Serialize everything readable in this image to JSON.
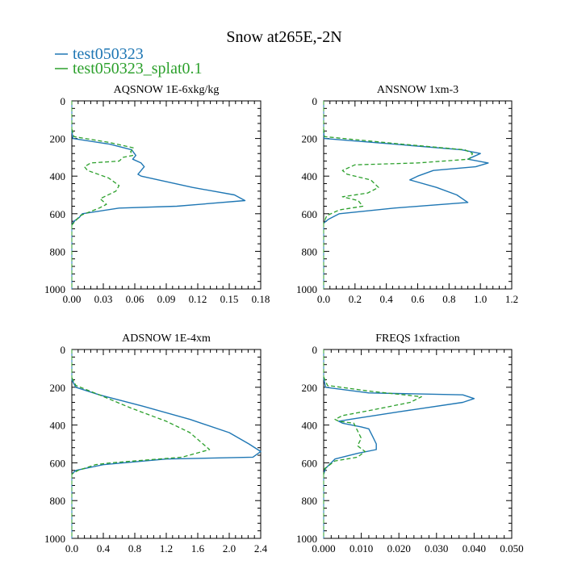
{
  "figure": {
    "title": "Snow at265E,-2N",
    "legend": [
      {
        "label": "test050323",
        "color": "#1f77b4",
        "dash": "solid"
      },
      {
        "label": "test050323_splat0.1",
        "color": "#2ca02c",
        "dash": "dashed"
      }
    ]
  },
  "chart_data": [
    {
      "type": "line",
      "title": "AQSNOW  1E-6xkg/kg",
      "xlim": [
        0,
        0.18
      ],
      "ylim": [
        1000,
        0
      ],
      "xticks": [
        0,
        0.03,
        0.06,
        0.09,
        0.12,
        0.15,
        0.18
      ],
      "xtick_labels": [
        "0.00",
        "0.03",
        "0.06",
        "0.09",
        "0.12",
        "0.15",
        "0.18"
      ],
      "yticks": [
        0,
        200,
        400,
        600,
        800,
        1000
      ],
      "ytick_labels": [
        "0",
        "200",
        "400",
        "600",
        "800",
        "1000"
      ],
      "series": [
        {
          "name": "test050323",
          "x": [
            0,
            0.001,
            0.036,
            0.057,
            0.061,
            0.058,
            0.066,
            0.069,
            0.063,
            0.066,
            0.115,
            0.155,
            0.165,
            0.1,
            0.045,
            0.01,
            0.007,
            0.002,
            0
          ],
          "y": [
            160,
            200,
            230,
            260,
            290,
            310,
            330,
            350,
            390,
            400,
            460,
            500,
            530,
            560,
            570,
            600,
            620,
            640,
            660
          ]
        },
        {
          "name": "test050323_splat0.1",
          "x": [
            0,
            0.002,
            0.035,
            0.059,
            0.056,
            0.058,
            0.049,
            0.045,
            0.018,
            0.012,
            0.015,
            0.035,
            0.045,
            0.042,
            0.027,
            0.033,
            0.026,
            0.008,
            0
          ],
          "y": [
            150,
            190,
            220,
            250,
            270,
            290,
            300,
            320,
            330,
            350,
            370,
            410,
            450,
            480,
            520,
            550,
            570,
            610,
            660
          ]
        }
      ]
    },
    {
      "type": "line",
      "title": "ANSNOW  1xm-3",
      "xlim": [
        0,
        1.2
      ],
      "ylim": [
        1000,
        0
      ],
      "xticks": [
        0,
        0.2,
        0.4,
        0.6,
        0.8,
        1.0,
        1.2
      ],
      "xtick_labels": [
        "0.0",
        "0.2",
        "0.4",
        "0.6",
        "0.8",
        "1.0",
        "1.2"
      ],
      "yticks": [
        0,
        200,
        400,
        600,
        800,
        1000
      ],
      "ytick_labels": [
        "0",
        "200",
        "400",
        "600",
        "800",
        "1000"
      ],
      "series": [
        {
          "name": "test050323",
          "x": [
            0,
            0.003,
            0.45,
            0.88,
            1.0,
            0.92,
            1.05,
            0.97,
            0.7,
            0.6,
            0.55,
            0.72,
            0.85,
            0.92,
            0.45,
            0.1,
            0.03,
            0
          ],
          "y": [
            160,
            200,
            230,
            260,
            280,
            310,
            330,
            350,
            370,
            400,
            420,
            460,
            500,
            540,
            570,
            600,
            630,
            650
          ]
        },
        {
          "name": "test050323_splat0.1",
          "x": [
            0,
            0.005,
            0.5,
            0.9,
            0.95,
            0.93,
            0.6,
            0.2,
            0.12,
            0.15,
            0.3,
            0.35,
            0.28,
            0.12,
            0.22,
            0.25,
            0.1,
            0.02,
            0
          ],
          "y": [
            150,
            190,
            230,
            260,
            280,
            310,
            330,
            340,
            370,
            390,
            420,
            460,
            490,
            510,
            530,
            560,
            580,
            610,
            650
          ]
        }
      ]
    },
    {
      "type": "line",
      "title": "ADSNOW  1E-4xm",
      "xlim": [
        0,
        2.4
      ],
      "ylim": [
        1000,
        0
      ],
      "xticks": [
        0,
        0.4,
        0.8,
        1.2,
        1.6,
        2.0,
        2.4
      ],
      "xtick_labels": [
        "0.0",
        "0.4",
        "0.8",
        "1.2",
        "1.6",
        "2.0",
        "2.4"
      ],
      "yticks": [
        0,
        200,
        400,
        600,
        800,
        1000
      ],
      "ytick_labels": [
        "0",
        "200",
        "400",
        "600",
        "800",
        "1000"
      ],
      "series": [
        {
          "name": "test050323",
          "x": [
            0,
            0.05,
            0.35,
            0.9,
            1.5,
            2.0,
            2.25,
            2.4,
            2.3,
            1.2,
            0.4,
            0.05,
            0
          ],
          "y": [
            160,
            200,
            240,
            300,
            370,
            440,
            500,
            540,
            570,
            580,
            610,
            640,
            660
          ]
        },
        {
          "name": "test050323_splat0.1",
          "x": [
            0,
            0.05,
            0.35,
            0.75,
            1.2,
            1.5,
            1.75,
            1.4,
            0.5,
            0.3,
            0.08,
            0
          ],
          "y": [
            150,
            190,
            240,
            310,
            380,
            440,
            530,
            570,
            600,
            610,
            640,
            660
          ]
        }
      ]
    },
    {
      "type": "line",
      "title": "FREQS  1xfraction",
      "xlim": [
        0,
        0.05
      ],
      "ylim": [
        1000,
        0
      ],
      "xticks": [
        0,
        0.01,
        0.02,
        0.03,
        0.04,
        0.05
      ],
      "xtick_labels": [
        "0.000",
        "0.010",
        "0.020",
        "0.030",
        "0.040",
        "0.050"
      ],
      "yticks": [
        0,
        200,
        400,
        600,
        800,
        1000
      ],
      "ytick_labels": [
        "0",
        "200",
        "400",
        "600",
        "800",
        "1000"
      ],
      "series": [
        {
          "name": "test050323",
          "x": [
            0,
            0.0005,
            0.012,
            0.037,
            0.04,
            0.037,
            0.02,
            0.007,
            0.004,
            0.005,
            0.01,
            0.012,
            0.013,
            0.014,
            0.014,
            0.009,
            0.003,
            0.0005,
            0
          ],
          "y": [
            150,
            200,
            230,
            240,
            260,
            280,
            330,
            370,
            380,
            390,
            410,
            420,
            460,
            500,
            530,
            550,
            580,
            630,
            660
          ]
        },
        {
          "name": "test050323_splat0.1",
          "x": [
            0,
            0.001,
            0.012,
            0.026,
            0.023,
            0.018,
            0.013,
            0.005,
            0.003,
            0.004,
            0.008,
            0.009,
            0.01,
            0.009,
            0.011,
            0.009,
            0.003,
            0.0003,
            0
          ],
          "y": [
            145,
            190,
            220,
            250,
            280,
            300,
            320,
            350,
            370,
            380,
            390,
            430,
            470,
            510,
            540,
            570,
            590,
            630,
            660
          ]
        }
      ]
    }
  ]
}
